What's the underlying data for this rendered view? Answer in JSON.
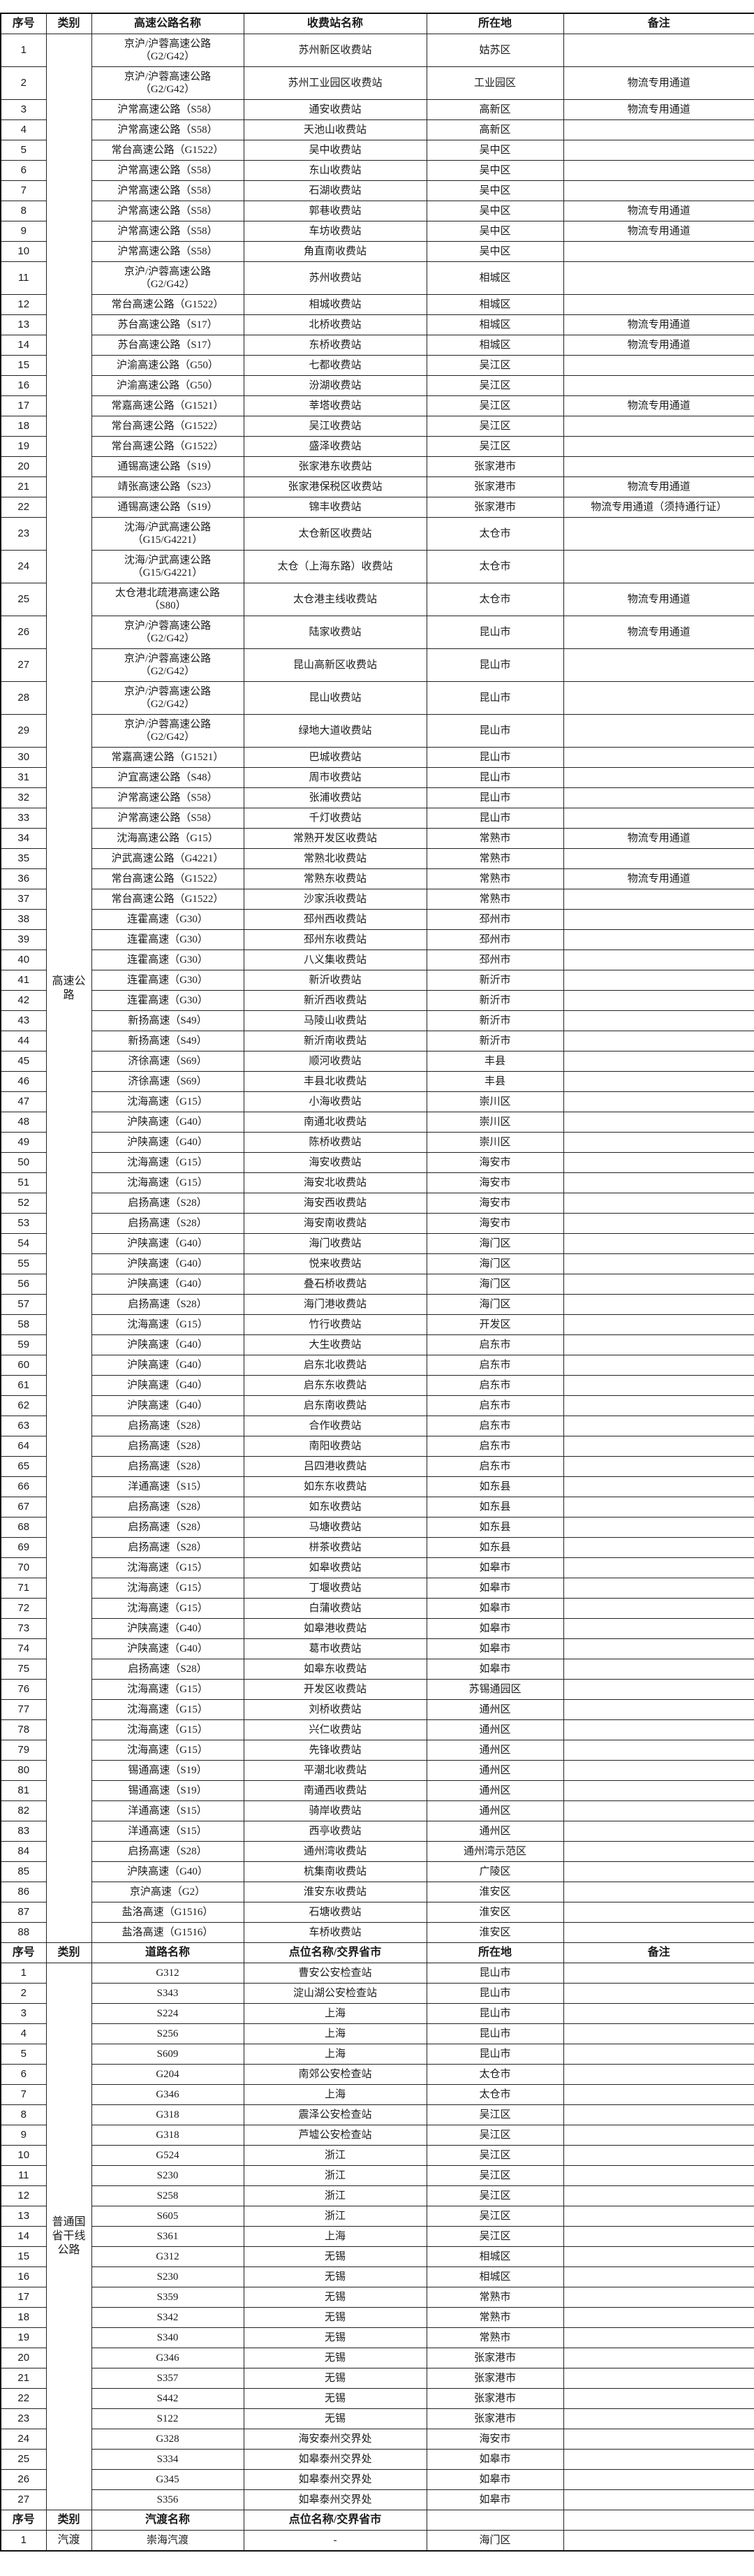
{
  "sections": [
    {
      "headers": [
        "序号",
        "类别",
        "高速公路名称",
        "收费站名称",
        "所在地",
        "备注"
      ],
      "category": "高速公路",
      "rows": [
        [
          "1",
          "京沪/沪蓉高速公路（G2/G42）",
          "苏州新区收费站",
          "姑苏区",
          ""
        ],
        [
          "2",
          "京沪/沪蓉高速公路（G2/G42）",
          "苏州工业园区收费站",
          "工业园区",
          "物流专用通道"
        ],
        [
          "3",
          "沪常高速公路（S58）",
          "通安收费站",
          "高新区",
          "物流专用通道"
        ],
        [
          "4",
          "沪常高速公路（S58）",
          "天池山收费站",
          "高新区",
          ""
        ],
        [
          "5",
          "常台高速公路（G1522）",
          "吴中收费站",
          "吴中区",
          ""
        ],
        [
          "6",
          "沪常高速公路（S58）",
          "东山收费站",
          "吴中区",
          ""
        ],
        [
          "7",
          "沪常高速公路（S58）",
          "石湖收费站",
          "吴中区",
          ""
        ],
        [
          "8",
          "沪常高速公路（S58）",
          "郭巷收费站",
          "吴中区",
          "物流专用通道"
        ],
        [
          "9",
          "沪常高速公路（S58）",
          "车坊收费站",
          "吴中区",
          "物流专用通道"
        ],
        [
          "10",
          "沪常高速公路（S58）",
          "角直南收费站",
          "吴中区",
          ""
        ],
        [
          "11",
          "京沪/沪蓉高速公路（G2/G42）",
          "苏州收费站",
          "相城区",
          ""
        ],
        [
          "12",
          "常台高速公路（G1522）",
          "相城收费站",
          "相城区",
          ""
        ],
        [
          "13",
          "苏台高速公路（S17）",
          "北桥收费站",
          "相城区",
          "物流专用通道"
        ],
        [
          "14",
          "苏台高速公路（S17）",
          "东桥收费站",
          "相城区",
          "物流专用通道"
        ],
        [
          "15",
          "沪渝高速公路（G50）",
          "七都收费站",
          "吴江区",
          ""
        ],
        [
          "16",
          "沪渝高速公路（G50）",
          "汾湖收费站",
          "吴江区",
          ""
        ],
        [
          "17",
          "常嘉高速公路（G1521）",
          "莘塔收费站",
          "吴江区",
          "物流专用通道"
        ],
        [
          "18",
          "常台高速公路（G1522）",
          "吴江收费站",
          "吴江区",
          ""
        ],
        [
          "19",
          "常台高速公路（G1522）",
          "盛泽收费站",
          "吴江区",
          ""
        ],
        [
          "20",
          "通锡高速公路（S19）",
          "张家港东收费站",
          "张家港市",
          ""
        ],
        [
          "21",
          "靖张高速公路（S23）",
          "张家港保税区收费站",
          "张家港市",
          "物流专用通道"
        ],
        [
          "22",
          "通锡高速公路（S19）",
          "锦丰收费站",
          "张家港市",
          "物流专用通道（须持通行证）"
        ],
        [
          "23",
          "沈海/沪武高速公路（G15/G4221）",
          "太仓新区收费站",
          "太仓市",
          ""
        ],
        [
          "24",
          "沈海/沪武高速公路（G15/G4221）",
          "太仓（上海东路）收费站",
          "太仓市",
          ""
        ],
        [
          "25",
          "太仓港北疏港高速公路（S80）",
          "太仓港主线收费站",
          "太仓市",
          "物流专用通道"
        ],
        [
          "26",
          "京沪/沪蓉高速公路（G2/G42）",
          "陆家收费站",
          "昆山市",
          "物流专用通道"
        ],
        [
          "27",
          "京沪/沪蓉高速公路（G2/G42）",
          "昆山高新区收费站",
          "昆山市",
          ""
        ],
        [
          "28",
          "京沪/沪蓉高速公路（G2/G42）",
          "昆山收费站",
          "昆山市",
          ""
        ],
        [
          "29",
          "京沪/沪蓉高速公路（G2/G42）",
          "绿地大道收费站",
          "昆山市",
          ""
        ],
        [
          "30",
          "常嘉高速公路（G1521）",
          "巴城收费站",
          "昆山市",
          ""
        ],
        [
          "31",
          "沪宜高速公路（S48）",
          "周市收费站",
          "昆山市",
          ""
        ],
        [
          "32",
          "沪常高速公路（S58）",
          "张浦收费站",
          "昆山市",
          ""
        ],
        [
          "33",
          "沪常高速公路（S58）",
          "千灯收费站",
          "昆山市",
          ""
        ],
        [
          "34",
          "沈海高速公路（G15）",
          "常熟开发区收费站",
          "常熟市",
          "物流专用通道"
        ],
        [
          "35",
          "沪武高速公路（G4221）",
          "常熟北收费站",
          "常熟市",
          ""
        ],
        [
          "36",
          "常台高速公路（G1522）",
          "常熟东收费站",
          "常熟市",
          "物流专用通道"
        ],
        [
          "37",
          "常台高速公路（G1522）",
          "沙家浜收费站",
          "常熟市",
          ""
        ],
        [
          "38",
          "连霍高速（G30）",
          "邳州西收费站",
          "邳州市",
          ""
        ],
        [
          "39",
          "连霍高速（G30）",
          "邳州东收费站",
          "邳州市",
          ""
        ],
        [
          "40",
          "连霍高速（G30）",
          "八义集收费站",
          "邳州市",
          ""
        ],
        [
          "41",
          "连霍高速（G30）",
          "新沂收费站",
          "新沂市",
          ""
        ],
        [
          "42",
          "连霍高速（G30）",
          "新沂西收费站",
          "新沂市",
          ""
        ],
        [
          "43",
          "新扬高速（S49）",
          "马陵山收费站",
          "新沂市",
          ""
        ],
        [
          "44",
          "新扬高速（S49）",
          "新沂南收费站",
          "新沂市",
          ""
        ],
        [
          "45",
          "济徐高速（S69）",
          "顺河收费站",
          "丰县",
          ""
        ],
        [
          "46",
          "济徐高速（S69）",
          "丰县北收费站",
          "丰县",
          ""
        ],
        [
          "47",
          "沈海高速（G15）",
          "小海收费站",
          "崇川区",
          ""
        ],
        [
          "48",
          "沪陕高速（G40）",
          "南通北收费站",
          "崇川区",
          ""
        ],
        [
          "49",
          "沪陕高速（G40）",
          "陈桥收费站",
          "崇川区",
          ""
        ],
        [
          "50",
          "沈海高速（G15）",
          "海安收费站",
          "海安市",
          ""
        ],
        [
          "51",
          "沈海高速（G15）",
          "海安北收费站",
          "海安市",
          ""
        ],
        [
          "52",
          "启扬高速（S28）",
          "海安西收费站",
          "海安市",
          ""
        ],
        [
          "53",
          "启扬高速（S28）",
          "海安南收费站",
          "海安市",
          ""
        ],
        [
          "54",
          "沪陕高速（G40）",
          "海门收费站",
          "海门区",
          ""
        ],
        [
          "55",
          "沪陕高速（G40）",
          "悦来收费站",
          "海门区",
          ""
        ],
        [
          "56",
          "沪陕高速（G40）",
          "叠石桥收费站",
          "海门区",
          ""
        ],
        [
          "57",
          "启扬高速（S28）",
          "海门港收费站",
          "海门区",
          ""
        ],
        [
          "58",
          "沈海高速（G15）",
          "竹行收费站",
          "开发区",
          ""
        ],
        [
          "59",
          "沪陕高速（G40）",
          "大生收费站",
          "启东市",
          ""
        ],
        [
          "60",
          "沪陕高速（G40）",
          "启东北收费站",
          "启东市",
          ""
        ],
        [
          "61",
          "沪陕高速（G40）",
          "启东东收费站",
          "启东市",
          ""
        ],
        [
          "62",
          "沪陕高速（G40）",
          "启东南收费站",
          "启东市",
          ""
        ],
        [
          "63",
          "启扬高速（S28）",
          "合作收费站",
          "启东市",
          ""
        ],
        [
          "64",
          "启扬高速（S28）",
          "南阳收费站",
          "启东市",
          ""
        ],
        [
          "65",
          "启扬高速（S28）",
          "吕四港收费站",
          "启东市",
          ""
        ],
        [
          "66",
          "洋通高速（S15）",
          "如东东收费站",
          "如东县",
          ""
        ],
        [
          "67",
          "启扬高速（S28）",
          "如东收费站",
          "如东县",
          ""
        ],
        [
          "68",
          "启扬高速（S28）",
          "马塘收费站",
          "如东县",
          ""
        ],
        [
          "69",
          "启扬高速（S28）",
          "栟茶收费站",
          "如东县",
          ""
        ],
        [
          "70",
          "沈海高速（G15）",
          "如皋收费站",
          "如皋市",
          ""
        ],
        [
          "71",
          "沈海高速（G15）",
          "丁堰收费站",
          "如皋市",
          ""
        ],
        [
          "72",
          "沈海高速（G15）",
          "白蒲收费站",
          "如皋市",
          ""
        ],
        [
          "73",
          "沪陕高速（G40）",
          "如皋港收费站",
          "如皋市",
          ""
        ],
        [
          "74",
          "沪陕高速（G40）",
          "葛市收费站",
          "如皋市",
          ""
        ],
        [
          "75",
          "启扬高速（S28）",
          "如皋东收费站",
          "如皋市",
          ""
        ],
        [
          "76",
          "沈海高速（G15）",
          "开发区收费站",
          "苏锡通园区",
          ""
        ],
        [
          "77",
          "沈海高速（G15）",
          "刘桥收费站",
          "通州区",
          ""
        ],
        [
          "78",
          "沈海高速（G15）",
          "兴仁收费站",
          "通州区",
          ""
        ],
        [
          "79",
          "沈海高速（G15）",
          "先锋收费站",
          "通州区",
          ""
        ],
        [
          "80",
          "锡通高速（S19）",
          "平潮北收费站",
          "通州区",
          ""
        ],
        [
          "81",
          "锡通高速（S19）",
          "南通西收费站",
          "通州区",
          ""
        ],
        [
          "82",
          "洋通高速（S15）",
          "骑岸收费站",
          "通州区",
          ""
        ],
        [
          "83",
          "洋通高速（S15）",
          "西亭收费站",
          "通州区",
          ""
        ],
        [
          "84",
          "启扬高速（S28）",
          "通州湾收费站",
          "通州湾示范区",
          ""
        ],
        [
          "85",
          "沪陕高速（G40）",
          "杭集南收费站",
          "广陵区",
          ""
        ],
        [
          "86",
          "京沪高速（G2）",
          "淮安东收费站",
          "淮安区",
          ""
        ],
        [
          "87",
          "盐洛高速（G1516）",
          "石塘收费站",
          "淮安区",
          ""
        ],
        [
          "88",
          "盐洛高速（G1516）",
          "车桥收费站",
          "淮安区",
          ""
        ]
      ]
    },
    {
      "headers": [
        "序号",
        "类别",
        "道路名称",
        "点位名称/交界省市",
        "所在地",
        "备注"
      ],
      "category": "普通国省干线公路",
      "rows": [
        [
          "1",
          "G312",
          "曹安公安检查站",
          "昆山市",
          ""
        ],
        [
          "2",
          "S343",
          "淀山湖公安检查站",
          "昆山市",
          ""
        ],
        [
          "3",
          "S224",
          "上海",
          "昆山市",
          ""
        ],
        [
          "4",
          "S256",
          "上海",
          "昆山市",
          ""
        ],
        [
          "5",
          "S609",
          "上海",
          "昆山市",
          ""
        ],
        [
          "6",
          "G204",
          "南郊公安检查站",
          "太仓市",
          ""
        ],
        [
          "7",
          "G346",
          "上海",
          "太仓市",
          ""
        ],
        [
          "8",
          "G318",
          "震泽公安检查站",
          "吴江区",
          ""
        ],
        [
          "9",
          "G318",
          "芦墟公安检查站",
          "吴江区",
          ""
        ],
        [
          "10",
          "G524",
          "浙江",
          "吴江区",
          ""
        ],
        [
          "11",
          "S230",
          "浙江",
          "吴江区",
          ""
        ],
        [
          "12",
          "S258",
          "浙江",
          "吴江区",
          ""
        ],
        [
          "13",
          "S605",
          "浙江",
          "吴江区",
          ""
        ],
        [
          "14",
          "S361",
          "上海",
          "吴江区",
          ""
        ],
        [
          "15",
          "G312",
          "无锡",
          "相城区",
          ""
        ],
        [
          "16",
          "S230",
          "无锡",
          "相城区",
          ""
        ],
        [
          "17",
          "S359",
          "无锡",
          "常熟市",
          ""
        ],
        [
          "18",
          "S342",
          "无锡",
          "常熟市",
          ""
        ],
        [
          "19",
          "S340",
          "无锡",
          "常熟市",
          ""
        ],
        [
          "20",
          "G346",
          "无锡",
          "张家港市",
          ""
        ],
        [
          "21",
          "S357",
          "无锡",
          "张家港市",
          ""
        ],
        [
          "22",
          "S442",
          "无锡",
          "张家港市",
          ""
        ],
        [
          "23",
          "S122",
          "无锡",
          "张家港市",
          ""
        ],
        [
          "24",
          "G328",
          "海安泰州交界处",
          "海安市",
          ""
        ],
        [
          "25",
          "S334",
          "如皋泰州交界处",
          "如皋市",
          ""
        ],
        [
          "26",
          "G345",
          "如皋泰州交界处",
          "如皋市",
          ""
        ],
        [
          "27",
          "S356",
          "如皋泰州交界处",
          "如皋市",
          ""
        ]
      ]
    },
    {
      "headers": [
        "序号",
        "类别",
        "汽渡名称",
        "点位名称/交界省市",
        "",
        ""
      ],
      "category": "汽渡",
      "rows": [
        [
          "1",
          "崇海汽渡",
          "-",
          "海门区",
          ""
        ]
      ]
    }
  ]
}
